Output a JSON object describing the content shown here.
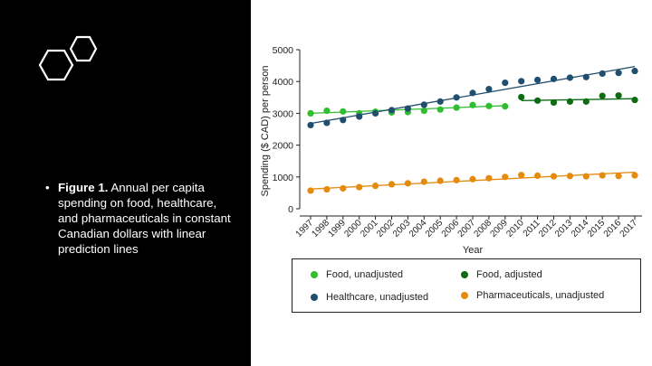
{
  "caption": {
    "bullet": "•",
    "bold": "Figure 1.",
    "text": " Annual per capita spending on food, healthcare, and pharmaceuticals in constant Canadian dollars with linear prediction lines"
  },
  "icons": [
    "hexagon-outline-icon",
    "hexagon-outline-icon"
  ],
  "colors": {
    "panel_bg": "#000000",
    "food_unadjusted": "#2fbe2f",
    "food_adjusted": "#0e6b12",
    "healthcare": "#1f4e6e",
    "pharmaceuticals": "#e48a0c"
  },
  "chart_data": {
    "type": "scatter",
    "xlabel": "Year",
    "ylabel": "Spending ($ CAD) per person",
    "ylim": [
      0,
      5000
    ],
    "yticks": [
      0,
      1000,
      2000,
      3000,
      4000,
      5000
    ],
    "x_ticks": [
      1997,
      1998,
      1999,
      2000,
      2001,
      2002,
      2003,
      2004,
      2005,
      2006,
      2007,
      2008,
      2009,
      2010,
      2011,
      2012,
      2013,
      2014,
      2015,
      2016,
      2017
    ],
    "series": [
      {
        "name": "Food, unadjusted",
        "color": "#2fbe2f",
        "x": [
          1997,
          1998,
          1999,
          2000,
          2001,
          2002,
          2003,
          2004,
          2005,
          2006,
          2007,
          2008,
          2009
        ],
        "values": [
          3000,
          3080,
          3060,
          3000,
          3050,
          3030,
          3040,
          3080,
          3120,
          3180,
          3260,
          3230,
          3220
        ],
        "fit": {
          "x": [
            1997,
            2009
          ],
          "y": [
            3000,
            3240
          ]
        }
      },
      {
        "name": "Food, adjusted",
        "color": "#0e6b12",
        "x": [
          2010,
          2011,
          2012,
          2013,
          2014,
          2015,
          2016,
          2017
        ],
        "values": [
          3510,
          3400,
          3340,
          3370,
          3370,
          3550,
          3560,
          3420
        ],
        "fit": {
          "x": [
            2010,
            2017
          ],
          "y": [
            3400,
            3460
          ]
        }
      },
      {
        "name": "Healthcare, unadjusted",
        "color": "#1f4e6e",
        "x": [
          1997,
          1998,
          1999,
          2000,
          2001,
          2002,
          2003,
          2004,
          2005,
          2006,
          2007,
          2008,
          2009,
          2010,
          2011,
          2012,
          2013,
          2014,
          2015,
          2016,
          2017
        ],
        "values": [
          2630,
          2700,
          2790,
          2900,
          3000,
          3100,
          3150,
          3270,
          3370,
          3500,
          3640,
          3760,
          3960,
          4010,
          4050,
          4080,
          4120,
          4140,
          4250,
          4270,
          4330
        ],
        "fit": {
          "x": [
            1997,
            2017
          ],
          "y": [
            2680,
            4470
          ]
        }
      },
      {
        "name": "Pharmaceuticals, unadjusted",
        "color": "#e48a0c",
        "x": [
          1997,
          1998,
          1999,
          2000,
          2001,
          2002,
          2003,
          2004,
          2005,
          2006,
          2007,
          2008,
          2009,
          2010,
          2011,
          2012,
          2013,
          2014,
          2015,
          2016,
          2017
        ],
        "values": [
          570,
          610,
          640,
          680,
          720,
          770,
          800,
          850,
          880,
          900,
          930,
          960,
          1000,
          1060,
          1040,
          1020,
          1030,
          1020,
          1050,
          1030,
          1050
        ],
        "fit": {
          "x": [
            1997,
            2017
          ],
          "y": [
            620,
            1150
          ]
        }
      }
    ],
    "legend": {
      "position": "bottom",
      "items": [
        {
          "label": "Food, unadjusted",
          "color": "#2fbe2f"
        },
        {
          "label": "Food, adjusted",
          "color": "#0e6b12"
        },
        {
          "label": "Healthcare, unadjusted",
          "color": "#1f4e6e"
        },
        {
          "label": "Pharmaceuticals, unadjusted",
          "color": "#e48a0c"
        }
      ]
    },
    "grid": false
  }
}
